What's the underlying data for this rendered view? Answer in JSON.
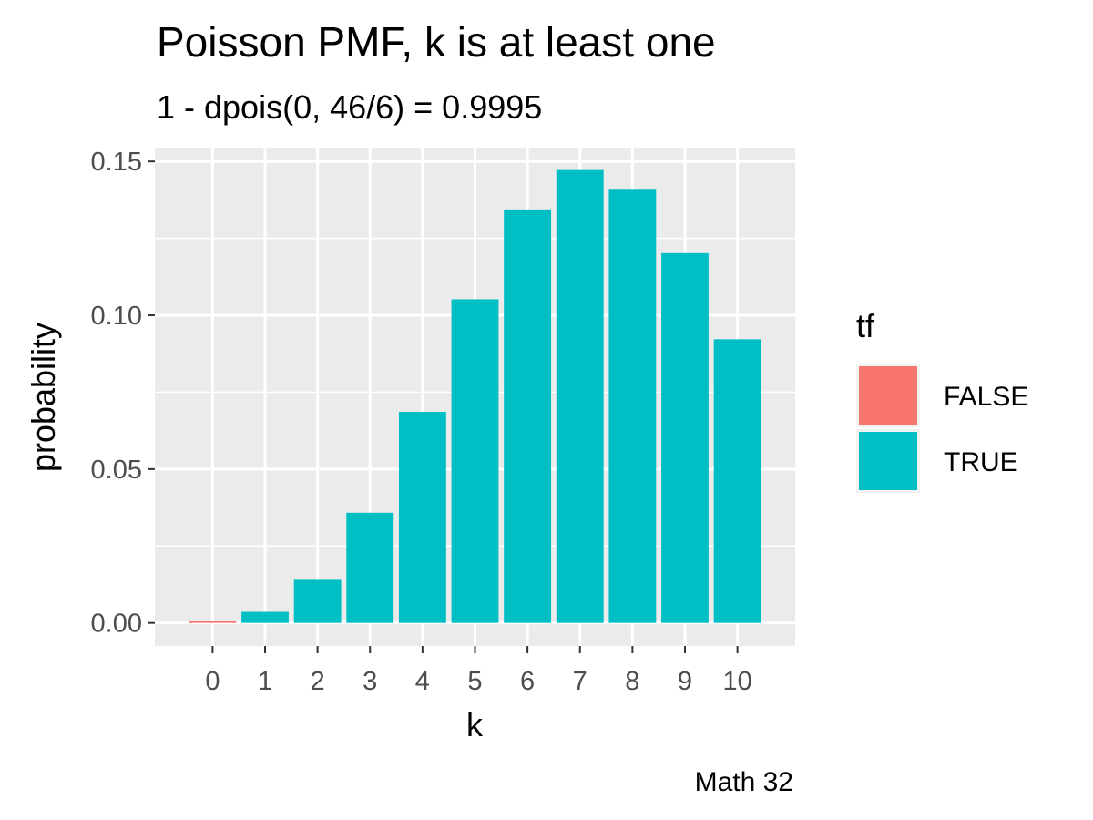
{
  "chart_data": {
    "type": "bar",
    "title": "Poisson PMF, k is at least one",
    "subtitle": "1 - dpois(0, 46/6) = 0.9995",
    "xlabel": "k",
    "ylabel": "probability",
    "caption": "Math 32",
    "categories": [
      "0",
      "1",
      "2",
      "3",
      "4",
      "5",
      "6",
      "7",
      "8",
      "9",
      "10"
    ],
    "values": [
      0.0005,
      0.0036,
      0.014,
      0.0358,
      0.0686,
      0.1052,
      0.1344,
      0.1472,
      0.1411,
      0.1202,
      0.0922
    ],
    "fill_group": [
      "FALSE",
      "TRUE",
      "TRUE",
      "TRUE",
      "TRUE",
      "TRUE",
      "TRUE",
      "TRUE",
      "TRUE",
      "TRUE",
      "TRUE"
    ],
    "y_ticks": [
      "0.00",
      "0.05",
      "0.10",
      "0.15"
    ],
    "ylim": [
      -0.0075,
      0.1545
    ],
    "grid": true,
    "legend": {
      "title": "tf",
      "position": "right",
      "items": [
        {
          "label": "FALSE",
          "color": "#F8766D"
        },
        {
          "label": "TRUE",
          "color": "#00BFC4"
        }
      ]
    },
    "colors": {
      "panel": "#EBEBEB",
      "grid": "#FFFFFF",
      "tick_text": "#4D4D4D"
    }
  }
}
